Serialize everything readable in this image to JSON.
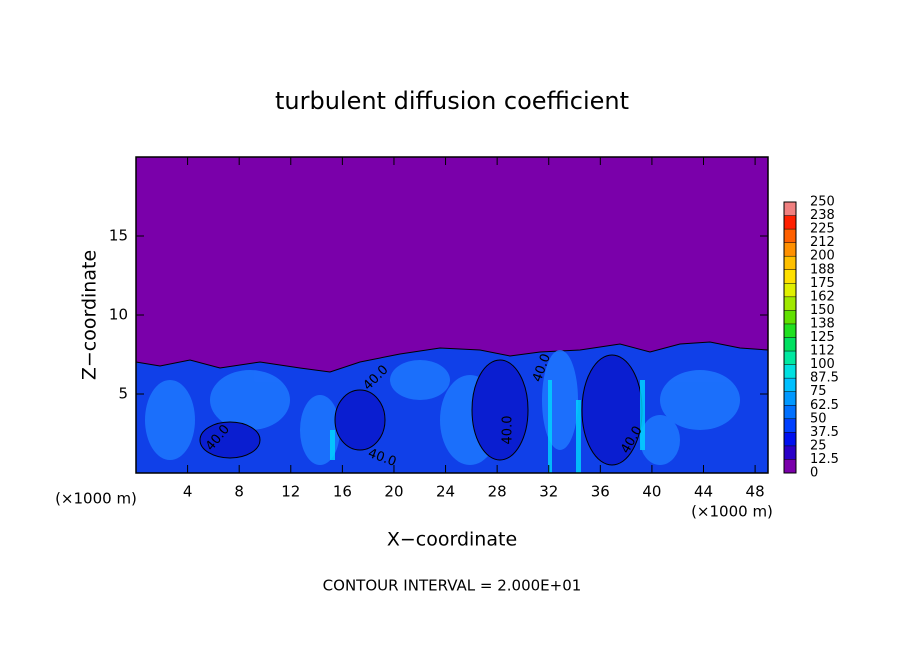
{
  "chart_data": {
    "type": "contour",
    "title": "turbulent diffusion coefficient",
    "xlabel": "X−coordinate",
    "ylabel": "Z−coordinate",
    "x_unit": "(×1000 m)",
    "xlim": [
      0,
      49
    ],
    "xticks": [
      4,
      8,
      12,
      16,
      20,
      24,
      28,
      32,
      36,
      40,
      44,
      48
    ],
    "ylim": [
      0,
      20
    ],
    "yticks": [
      5,
      10,
      15
    ],
    "footer": "CONTOUR INTERVAL = 2.000E+01",
    "contour_labels": [
      "40.0",
      "40.0",
      "40.0",
      "40.0",
      "40.0",
      "40.0"
    ],
    "colorbar": {
      "ticks": [
        0,
        12.5,
        25,
        37.5,
        50,
        62.5,
        75,
        87.5,
        100,
        {
          "value": 112.5,
          "label": "112"
        },
        125,
        {
          "value": 137.5,
          "label": "138"
        },
        150,
        {
          "value": 162.5,
          "label": "162"
        },
        175,
        {
          "value": 187.5,
          "label": "188"
        },
        200,
        {
          "value": 212.5,
          "label": "212"
        },
        225,
        {
          "value": 237.5,
          "label": "238"
        },
        250
      ],
      "colors": [
        "#7a00aa",
        "#2a00c8",
        "#0010f0",
        "#0040ff",
        "#0070ff",
        "#0098ff",
        "#00c0ff",
        "#00e0e0",
        "#00e8a0",
        "#00e060",
        "#20e020",
        "#60e000",
        "#a0e800",
        "#e0f000",
        "#ffe000",
        "#ffc000",
        "#ff9000",
        "#ff6000",
        "#ff2000",
        "#f08080"
      ]
    }
  }
}
